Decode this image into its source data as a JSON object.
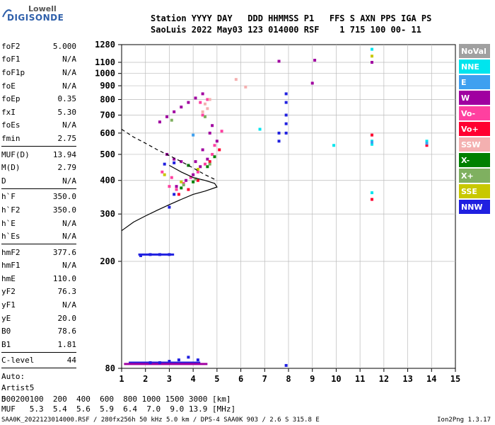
{
  "logo": {
    "line1": "Lowell",
    "line2": "DIGISONDE"
  },
  "header": {
    "row1": "Station YYYY DAY   DDD HHMMSS P1   FFS S AXN PPS IGA PS",
    "row2": "SaoLuis 2022 May03 123 014000 RSF    1 715 100 00- 11"
  },
  "params": {
    "group1": [
      {
        "label": "foF2",
        "value": "5.000"
      },
      {
        "label": "foF1",
        "value": "N/A"
      },
      {
        "label": "foF1p",
        "value": "N/A"
      },
      {
        "label": "foE",
        "value": "N/A"
      },
      {
        "label": "foEp",
        "value": "0.35"
      },
      {
        "label": "fxI",
        "value": "5.30"
      },
      {
        "label": "foEs",
        "value": "N/A"
      },
      {
        "label": "fmin",
        "value": "2.75"
      }
    ],
    "group2": [
      {
        "label": "MUF(D)",
        "value": "13.94"
      },
      {
        "label": "M(D)",
        "value": "2.79"
      },
      {
        "label": "D",
        "value": "N/A"
      }
    ],
    "group3": [
      {
        "label": "h`F",
        "value": "350.0"
      },
      {
        "label": "h`F2",
        "value": "350.0"
      },
      {
        "label": "h`E",
        "value": "N/A"
      },
      {
        "label": "h`Es",
        "value": "N/A"
      }
    ],
    "group4": [
      {
        "label": "hmF2",
        "value": "377.6"
      },
      {
        "label": "hmF1",
        "value": "N/A"
      },
      {
        "label": "hmE",
        "value": "110.0"
      },
      {
        "label": "yF2",
        "value": "76.3"
      },
      {
        "label": "yF1",
        "value": "N/A"
      },
      {
        "label": "yE",
        "value": "20.0"
      },
      {
        "label": "B0",
        "value": "78.6"
      },
      {
        "label": "B1",
        "value": "1.81"
      }
    ],
    "group5": [
      {
        "label": "C-level",
        "value": "44"
      }
    ],
    "auto": [
      "Auto:",
      "Artist5",
      "500200"
    ]
  },
  "legend": [
    {
      "label": "NoVal",
      "color": "#a0a0a0"
    },
    {
      "label": "NNE",
      "color": "#00e5ee"
    },
    {
      "label": "E",
      "color": "#3ea0f0"
    },
    {
      "label": "W",
      "color": "#a000a0"
    },
    {
      "label": "Vo-",
      "color": "#ff40a0"
    },
    {
      "label": "Vo+",
      "color": "#ff0030"
    },
    {
      "label": "SSW",
      "color": "#f4b0b0"
    },
    {
      "label": "X-",
      "color": "#008000"
    },
    {
      "label": "X+",
      "color": "#7fb060"
    },
    {
      "label": "SSE",
      "color": "#c8c800"
    },
    {
      "label": "NNW",
      "color": "#2020e0"
    }
  ],
  "muf_table": {
    "row1": "D     100  200  400  600  800 1000 1500 3000 [km]",
    "row2": "MUF   5.3  5.4  5.6  5.9  6.4  7.0  9.0 13.9 [MHz]"
  },
  "footer": {
    "left": "SAA0K_2022123014000.RSF / 280fx256h 50 kHz 5.0 km / DPS-4 SAA0K 903 / 2.6 S 315.8 E",
    "right": "Ion2Png 1.3.17"
  },
  "chart_data": {
    "type": "scatter",
    "xlim": [
      1,
      15
    ],
    "ylim": [
      80,
      1280
    ],
    "x_ticks": [
      1,
      2,
      3,
      4,
      5,
      6,
      7,
      8,
      9,
      10,
      11,
      12,
      13,
      14,
      15
    ],
    "y_ticks": [
      80,
      200,
      300,
      400,
      500,
      600,
      700,
      800,
      900,
      1000,
      1100,
      1280
    ],
    "y_scale": "log",
    "grid": true,
    "series": [
      {
        "name": "W",
        "color": "#a000a0",
        "points": [
          [
            2.6,
            660
          ],
          [
            2.9,
            690
          ],
          [
            3.2,
            720
          ],
          [
            3.5,
            750
          ],
          [
            3.8,
            780
          ],
          [
            4.1,
            810
          ],
          [
            4.4,
            840
          ],
          [
            2.9,
            500
          ],
          [
            3.2,
            480
          ],
          [
            3.5,
            470
          ],
          [
            3.8,
            455
          ],
          [
            4.1,
            470
          ],
          [
            4.4,
            520
          ],
          [
            4.7,
            600
          ],
          [
            4.8,
            640
          ],
          [
            5.0,
            560
          ],
          [
            3.3,
            380
          ],
          [
            3.7,
            400
          ],
          [
            4.0,
            420
          ],
          [
            4.3,
            450
          ],
          [
            4.6,
            480
          ],
          [
            9.0,
            920
          ],
          [
            9.1,
            1120
          ],
          [
            7.6,
            1110
          ],
          [
            11.5,
            1100
          ]
        ]
      },
      {
        "name": "Vo-",
        "color": "#ff40a0",
        "points": [
          [
            3.0,
            380
          ],
          [
            3.3,
            370
          ],
          [
            3.6,
            390
          ],
          [
            3.9,
            410
          ],
          [
            4.2,
            430
          ],
          [
            4.5,
            460
          ],
          [
            4.8,
            500
          ],
          [
            4.9,
            540
          ],
          [
            4.3,
            780
          ],
          [
            4.6,
            800
          ],
          [
            4.4,
            700
          ],
          [
            2.7,
            430
          ],
          [
            3.1,
            410
          ],
          [
            5.2,
            610
          ]
        ]
      },
      {
        "name": "Vo+",
        "color": "#ff0030",
        "points": [
          [
            3.4,
            355
          ],
          [
            3.8,
            370
          ],
          [
            4.2,
            400
          ],
          [
            4.7,
            470
          ],
          [
            5.1,
            520
          ],
          [
            11.5,
            340
          ],
          [
            13.8,
            540
          ],
          [
            11.5,
            590
          ]
        ]
      },
      {
        "name": "X-",
        "color": "#008000",
        "points": [
          [
            3.5,
            375
          ],
          [
            4.0,
            395
          ],
          [
            4.6,
            450
          ],
          [
            4.9,
            490
          ],
          [
            3.8,
            455
          ]
        ]
      },
      {
        "name": "X+",
        "color": "#7fb060",
        "points": [
          [
            3.6,
            385
          ],
          [
            4.1,
            405
          ],
          [
            4.7,
            460
          ],
          [
            4.5,
            690
          ],
          [
            3.1,
            670
          ]
        ]
      },
      {
        "name": "SSW",
        "color": "#f4b0b0",
        "points": [
          [
            4.6,
            740
          ],
          [
            4.5,
            770
          ],
          [
            4.7,
            800
          ],
          [
            4.4,
            720
          ],
          [
            5.8,
            950
          ],
          [
            6.2,
            890
          ]
        ]
      },
      {
        "name": "NNE",
        "color": "#00e5ee",
        "points": [
          [
            11.5,
            1230
          ],
          [
            11.5,
            560
          ],
          [
            11.5,
            545
          ],
          [
            11.5,
            360
          ],
          [
            13.8,
            560
          ],
          [
            6.8,
            620
          ],
          [
            9.9,
            540
          ]
        ]
      },
      {
        "name": "E",
        "color": "#3ea0f0",
        "points": [
          [
            11.5,
            555
          ],
          [
            13.8,
            550
          ],
          [
            4.0,
            590
          ]
        ]
      },
      {
        "name": "SSE",
        "color": "#c8c800",
        "points": [
          [
            3.5,
            395
          ],
          [
            4.2,
            440
          ],
          [
            2.8,
            420
          ],
          [
            11.5,
            1160
          ]
        ]
      },
      {
        "name": "NNW",
        "color": "#2020e0",
        "points": [
          [
            2.2,
            84
          ],
          [
            2.6,
            84
          ],
          [
            3.0,
            85
          ],
          [
            3.4,
            86
          ],
          [
            3.8,
            88
          ],
          [
            4.2,
            86
          ],
          [
            1.8,
            210
          ],
          [
            2.2,
            212
          ],
          [
            2.6,
            212
          ],
          [
            3.0,
            212
          ],
          [
            3.2,
            355
          ],
          [
            3.0,
            318
          ],
          [
            7.6,
            560
          ],
          [
            7.6,
            600
          ],
          [
            7.9,
            600
          ],
          [
            7.9,
            650
          ],
          [
            7.9,
            700
          ],
          [
            7.9,
            780
          ],
          [
            7.9,
            840
          ],
          [
            7.9,
            82
          ],
          [
            2.8,
            460
          ],
          [
            3.2,
            465
          ]
        ]
      }
    ],
    "bars": [
      {
        "name": "NNW-trace-low",
        "color": "#2020e0",
        "x_from": 1.3,
        "x_to": 4.3,
        "y": 84
      },
      {
        "name": "NNW-trace-mid",
        "color": "#2020e0",
        "x_from": 1.7,
        "x_to": 3.2,
        "y": 212
      },
      {
        "name": "W-trace-low",
        "color": "#a000a0",
        "x_from": 1.1,
        "x_to": 4.6,
        "y": 83
      }
    ],
    "profile": {
      "name": "electron-density-profile",
      "solid": [
        [
          1.0,
          260
        ],
        [
          1.5,
          280
        ],
        [
          2.0,
          295
        ],
        [
          2.5,
          310
        ],
        [
          3.0,
          325
        ],
        [
          3.5,
          340
        ],
        [
          4.0,
          355
        ],
        [
          4.5,
          365
        ],
        [
          5.0,
          378
        ],
        [
          4.9,
          390
        ],
        [
          4.5,
          400
        ],
        [
          4.0,
          410
        ],
        [
          3.5,
          430
        ],
        [
          3.0,
          455
        ]
      ],
      "dashed": [
        [
          1.0,
          620
        ],
        [
          1.5,
          580
        ],
        [
          2.0,
          550
        ],
        [
          2.5,
          520
        ],
        [
          3.0,
          495
        ],
        [
          3.5,
          470
        ],
        [
          4.0,
          445
        ],
        [
          4.5,
          420
        ],
        [
          5.0,
          400
        ]
      ]
    }
  }
}
